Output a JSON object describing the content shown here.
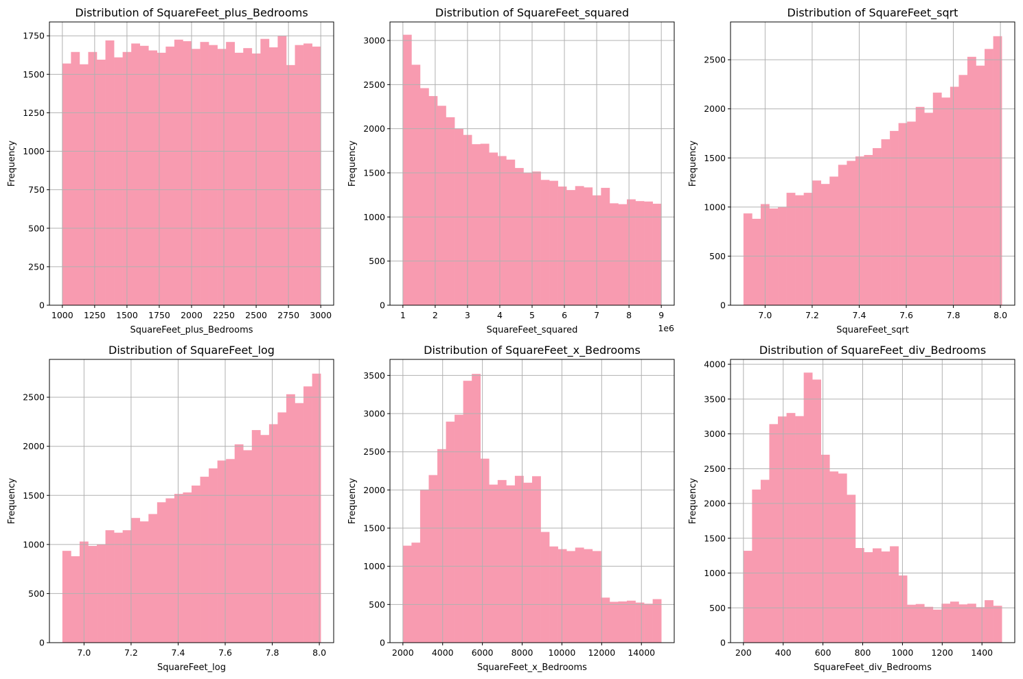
{
  "chart_data": [
    {
      "type": "bar",
      "title": "Distribution of SquareFeet_plus_Bedrooms",
      "xlabel": "SquareFeet_plus_Bedrooms",
      "ylabel": "Frequency",
      "bin_range": [
        1000,
        3000
      ],
      "xlim": [
        900,
        3100
      ],
      "ylim": [
        0,
        1840
      ],
      "xticks": [
        1000,
        1250,
        1500,
        1750,
        2000,
        2250,
        2500,
        2750,
        3000
      ],
      "xtick_labels": [
        "1000",
        "1250",
        "1500",
        "1750",
        "2000",
        "2250",
        "2500",
        "2750",
        "3000"
      ],
      "yticks": [
        0,
        250,
        500,
        750,
        1000,
        1250,
        1500,
        1750
      ],
      "ytick_labels": [
        "0",
        "250",
        "500",
        "750",
        "1000",
        "1250",
        "1500",
        "1750"
      ],
      "offset_label": "",
      "values": [
        1570,
        1645,
        1565,
        1645,
        1595,
        1720,
        1610,
        1645,
        1700,
        1685,
        1655,
        1640,
        1680,
        1725,
        1715,
        1665,
        1710,
        1690,
        1665,
        1710,
        1640,
        1670,
        1635,
        1730,
        1675,
        1750,
        1560,
        1690,
        1700,
        1680
      ]
    },
    {
      "type": "bar",
      "title": "Distribution of SquareFeet_squared",
      "xlabel": "SquareFeet_squared",
      "ylabel": "Frequency",
      "bin_range": [
        1,
        9
      ],
      "xlim": [
        0.6,
        9.4
      ],
      "ylim": [
        0,
        3210
      ],
      "xticks": [
        1,
        2,
        3,
        4,
        5,
        6,
        7,
        8,
        9
      ],
      "xtick_labels": [
        "1",
        "2",
        "3",
        "4",
        "5",
        "6",
        "7",
        "8",
        "9"
      ],
      "yticks": [
        0,
        500,
        1000,
        1500,
        2000,
        2500,
        3000
      ],
      "ytick_labels": [
        "0",
        "500",
        "1000",
        "1500",
        "2000",
        "2500",
        "3000"
      ],
      "offset_label": "1e6",
      "values": [
        3065,
        2725,
        2460,
        2370,
        2260,
        2130,
        2000,
        1930,
        1825,
        1830,
        1730,
        1690,
        1650,
        1555,
        1500,
        1515,
        1420,
        1410,
        1345,
        1305,
        1350,
        1335,
        1245,
        1330,
        1155,
        1145,
        1200,
        1180,
        1175,
        1150
      ]
    },
    {
      "type": "bar",
      "title": "Distribution of SquareFeet_sqrt",
      "xlabel": "SquareFeet_sqrt",
      "ylabel": "Frequency",
      "bin_range": [
        6.908,
        8.006
      ],
      "xlim": [
        6.853,
        8.061
      ],
      "ylim": [
        0,
        2885
      ],
      "xticks": [
        7.0,
        7.2,
        7.4,
        7.6,
        7.8,
        8.0
      ],
      "xtick_labels": [
        "7.0",
        "7.2",
        "7.4",
        "7.6",
        "7.8",
        "8.0"
      ],
      "yticks": [
        0,
        500,
        1000,
        1500,
        2000,
        2500
      ],
      "ytick_labels": [
        "0",
        "500",
        "1000",
        "1500",
        "2000",
        "2500"
      ],
      "offset_label": "",
      "values": [
        935,
        880,
        1030,
        985,
        1000,
        1145,
        1120,
        1145,
        1270,
        1235,
        1310,
        1430,
        1470,
        1515,
        1530,
        1600,
        1690,
        1775,
        1855,
        1870,
        2020,
        1960,
        2165,
        2115,
        2225,
        2345,
        2530,
        2440,
        2610,
        2740
      ]
    },
    {
      "type": "bar",
      "title": "Distribution of SquareFeet_log",
      "xlabel": "SquareFeet_log",
      "ylabel": "Frequency",
      "bin_range": [
        6.908,
        8.006
      ],
      "xlim": [
        6.853,
        8.061
      ],
      "ylim": [
        0,
        2885
      ],
      "xticks": [
        7.0,
        7.2,
        7.4,
        7.6,
        7.8,
        8.0
      ],
      "xtick_labels": [
        "7.0",
        "7.2",
        "7.4",
        "7.6",
        "7.8",
        "8.0"
      ],
      "yticks": [
        0,
        500,
        1000,
        1500,
        2000,
        2500
      ],
      "ytick_labels": [
        "0",
        "500",
        "1000",
        "1500",
        "2000",
        "2500"
      ],
      "offset_label": "",
      "values": [
        935,
        880,
        1030,
        985,
        1000,
        1145,
        1120,
        1145,
        1270,
        1235,
        1310,
        1430,
        1470,
        1515,
        1530,
        1600,
        1690,
        1775,
        1855,
        1870,
        2020,
        1960,
        2165,
        2115,
        2225,
        2345,
        2530,
        2440,
        2610,
        2740
      ]
    },
    {
      "type": "bar",
      "title": "Distribution of SquareFeet_x_Bedrooms",
      "xlabel": "SquareFeet_x_Bedrooms",
      "ylabel": "Frequency",
      "bin_range": [
        2000,
        15000
      ],
      "xlim": [
        1350,
        15650
      ],
      "ylim": [
        0,
        3710
      ],
      "xticks": [
        2000,
        4000,
        6000,
        8000,
        10000,
        12000,
        14000
      ],
      "xtick_labels": [
        "2000",
        "4000",
        "6000",
        "8000",
        "10000",
        "12000",
        "14000"
      ],
      "yticks": [
        0,
        500,
        1000,
        1500,
        2000,
        2500,
        3000,
        3500
      ],
      "ytick_labels": [
        "0",
        "500",
        "1000",
        "1500",
        "2000",
        "2500",
        "3000",
        "3500"
      ],
      "offset_label": "",
      "values": [
        1270,
        1310,
        2005,
        2195,
        2535,
        2895,
        2985,
        3430,
        3520,
        2410,
        2070,
        2130,
        2060,
        2185,
        2095,
        2180,
        1450,
        1260,
        1225,
        1200,
        1245,
        1225,
        1200,
        590,
        535,
        540,
        550,
        525,
        510,
        570
      ]
    },
    {
      "type": "bar",
      "title": "Distribution of SquareFeet_div_Bedrooms",
      "xlabel": "SquareFeet_div_Bedrooms",
      "ylabel": "Frequency",
      "bin_range": [
        200,
        1500
      ],
      "xlim": [
        135,
        1565
      ],
      "ylim": [
        0,
        4070
      ],
      "xticks": [
        200,
        400,
        600,
        800,
        1000,
        1200,
        1400
      ],
      "xtick_labels": [
        "200",
        "400",
        "600",
        "800",
        "1000",
        "1200",
        "1400"
      ],
      "yticks": [
        0,
        500,
        1000,
        1500,
        2000,
        2500,
        3000,
        3500,
        4000
      ],
      "ytick_labels": [
        "0",
        "500",
        "1000",
        "1500",
        "2000",
        "2500",
        "3000",
        "3500",
        "4000"
      ],
      "offset_label": "",
      "values": [
        1320,
        2200,
        2340,
        3140,
        3250,
        3300,
        3255,
        3880,
        3780,
        2700,
        2460,
        2430,
        2125,
        1360,
        1300,
        1355,
        1310,
        1385,
        965,
        545,
        555,
        515,
        475,
        560,
        590,
        550,
        560,
        510,
        610,
        530
      ]
    }
  ],
  "style": {
    "bar_color": "#f89bb0",
    "grid_color": "#b0b0b0"
  }
}
